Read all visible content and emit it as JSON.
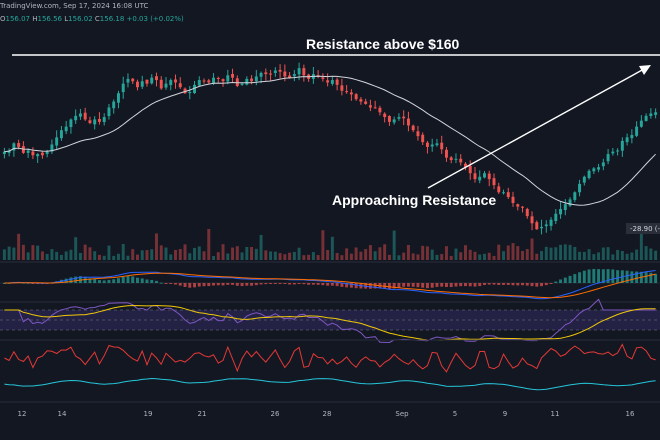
{
  "header": {
    "source_line": "TradingView.com, Sep 17, 2024 16:08 UTC",
    "ohlc_labels": {
      "o": "O",
      "h": "H",
      "l": "L",
      "c": "C"
    },
    "ohlc_values": {
      "o": "156.07",
      "h": "156.56",
      "l": "156.02",
      "c": "156.18",
      "change": "+0.03 (+0.02%)"
    }
  },
  "annotations": {
    "resistance": "Resistance above $160",
    "approaching": "Approaching Resistance"
  },
  "colors": {
    "background": "#131722",
    "up": "#26a69a",
    "down": "#ef5350",
    "ma": "#d1d4dc",
    "annotation": "#ffffff",
    "macd_line": "#2962ff",
    "signal_line": "#ff6d00",
    "rsi_line": "#7e57c2",
    "rsi_ma": "#f0c808",
    "rsi_band": "#2a2550",
    "osc_red": "#e53935",
    "osc_teal": "#26c6da"
  },
  "chart_data": {
    "type": "candlestick",
    "x_ticks": [
      "12",
      "14",
      "19",
      "21",
      "26",
      "28",
      "Sep",
      "5",
      "9",
      "11",
      "16"
    ],
    "badge": "-28.90 (-",
    "volume_shown": true,
    "closes": [
      152.9,
      153.0,
      153.6,
      153.3,
      152.8,
      153.0,
      152.6,
      152.7,
      152.6,
      152.9,
      153.5,
      154.1,
      154.7,
      155.0,
      155.6,
      155.9,
      156.1,
      155.6,
      155.3,
      155.6,
      155.4,
      155.8,
      156.6,
      157.1,
      157.8,
      158.6,
      159.0,
      158.8,
      158.3,
      158.8,
      158.6,
      159.1,
      158.9,
      158.2,
      158.6,
      158.9,
      158.7,
      158.3,
      157.8,
      157.9,
      158.5,
      158.9,
      158.8,
      158.7,
      159.1,
      159.0,
      158.8,
      159.3,
      159.1,
      158.4,
      158.6,
      159.0,
      158.8,
      159.2,
      159.5,
      159.4,
      159.4,
      159.7,
      159.6,
      159.2,
      159.1,
      159.4,
      159.9,
      159.3,
      159.0,
      159.4,
      159.2,
      159.0,
      158.7,
      158.9,
      158.5,
      158.0,
      157.9,
      157.7,
      157.3,
      157.1,
      156.9,
      156.6,
      156.6,
      156.2,
      155.8,
      155.4,
      155.6,
      155.8,
      155.7,
      155.1,
      154.7,
      154.2,
      153.7,
      153.3,
      153.5,
      153.6,
      153.1,
      152.4,
      152.2,
      152.3,
      152.0,
      151.6,
      151.1,
      150.6,
      150.8,
      151.1,
      150.6,
      150.1,
      149.5,
      149.5,
      149.1,
      148.6,
      148.3,
      148.2,
      147.5,
      146.9,
      146.4,
      146.6,
      146.8,
      147.2,
      147.7,
      148.1,
      148.5,
      148.9,
      149.5,
      150.2,
      150.8,
      151.3,
      151.5,
      151.6,
      152.0,
      152.7,
      152.9,
      153.0,
      153.8,
      154.1,
      154.3,
      155.0,
      155.5,
      155.9,
      156.1,
      156.2
    ],
    "overlay": "moving average",
    "indicators": [
      "MACD",
      "RSI",
      "oscillator"
    ]
  }
}
